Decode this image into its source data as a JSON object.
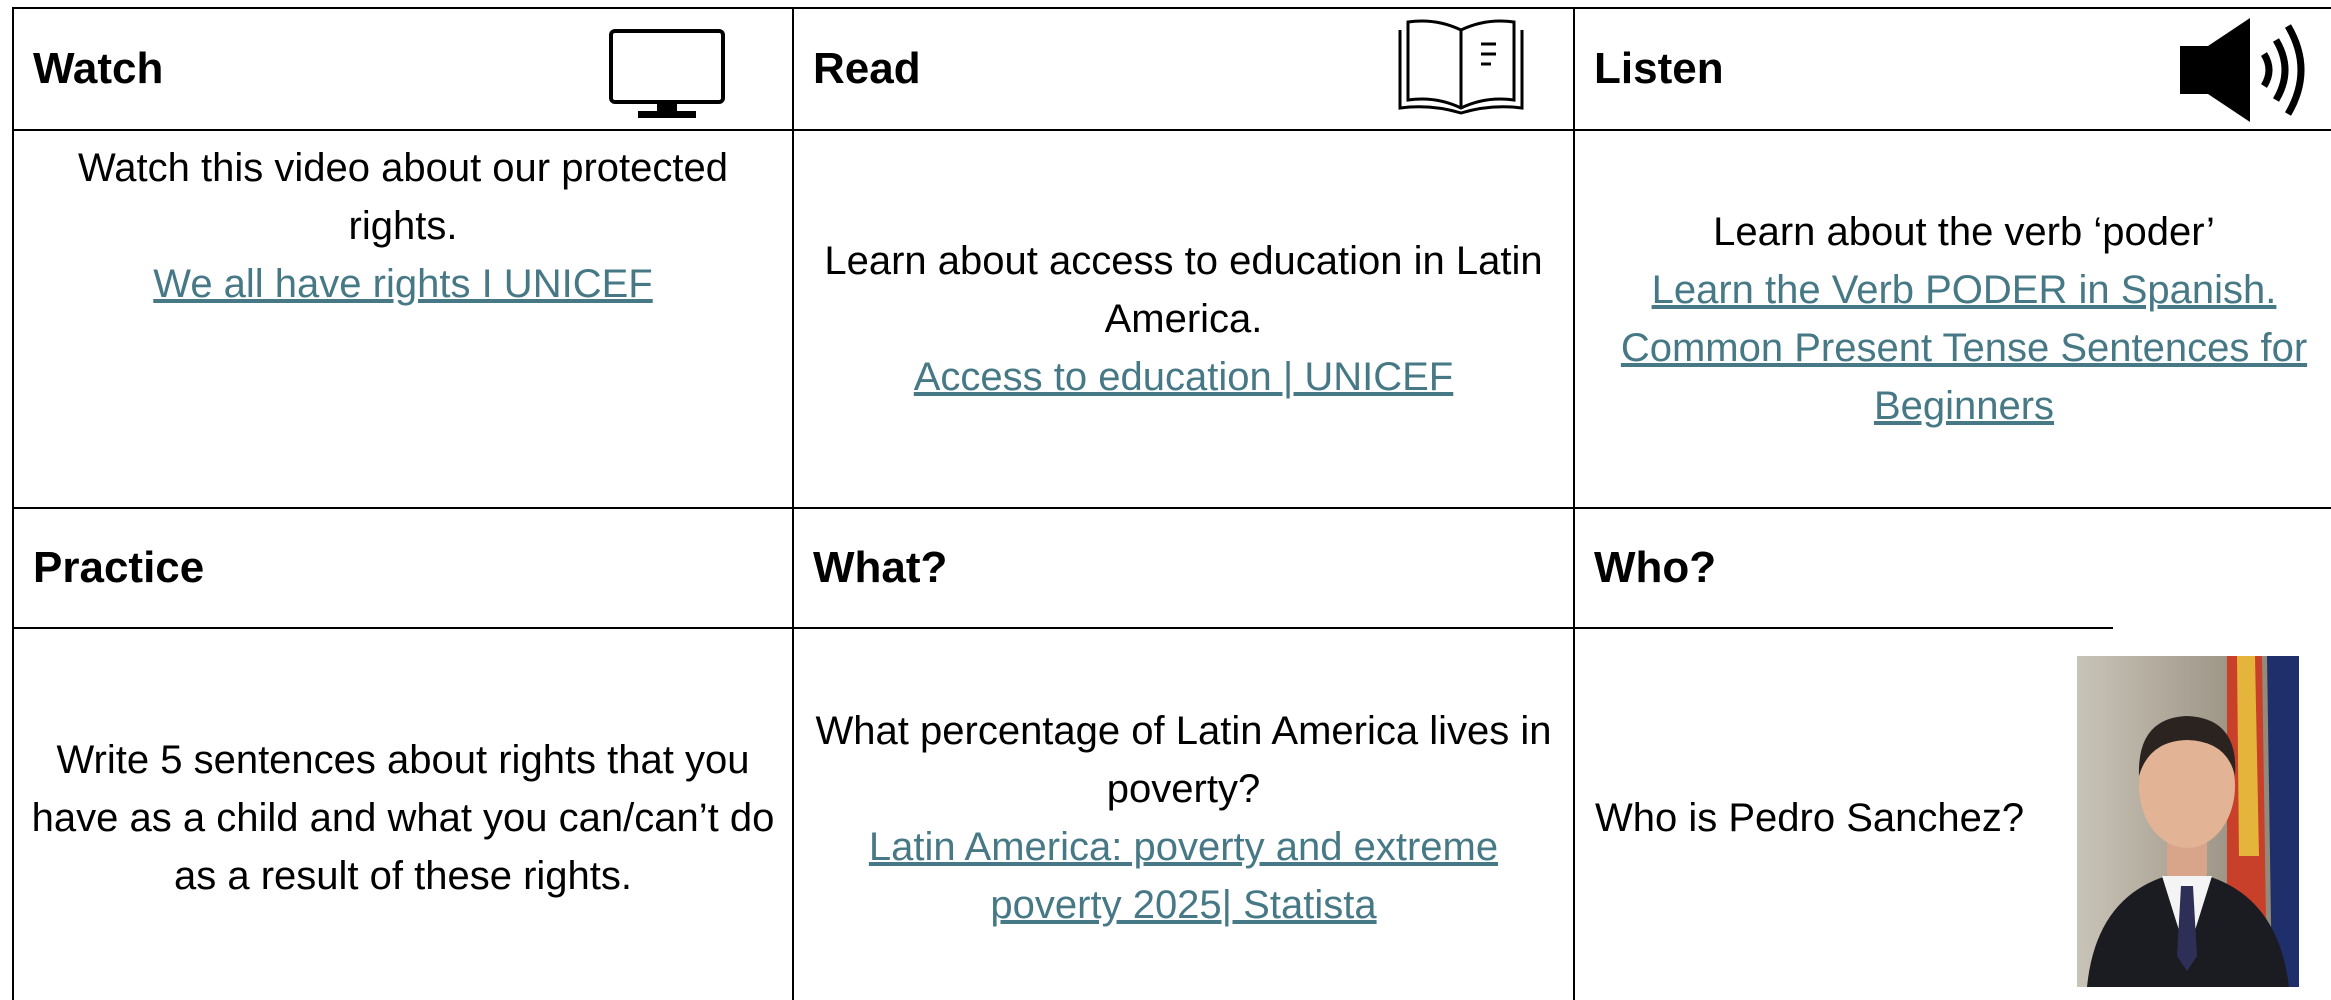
{
  "cells": [
    {
      "heading": "Watch",
      "text": "Watch this video about our protected rights.",
      "link": "We all have rights I UNICEF"
    },
    {
      "heading": "Read",
      "text": "Learn about access to education in Latin America.",
      "link": "Access to education | UNICEF"
    },
    {
      "heading": "Listen",
      "text": "Learn about the verb ‘poder’",
      "link": "Learn the Verb PODER in Spanish. Common Present Tense Sentences for Beginners"
    },
    {
      "heading": "Practice",
      "text": "Write 5 sentences about rights that you have as a child and what you can/can’t do as a result of these rights."
    },
    {
      "heading": "What?",
      "text": "What percentage of Latin America lives in poverty?",
      "link": "Latin America: poverty and extreme poverty 2025| Statista"
    },
    {
      "heading": "Who?",
      "text": "Who is Pedro Sanchez?"
    }
  ]
}
